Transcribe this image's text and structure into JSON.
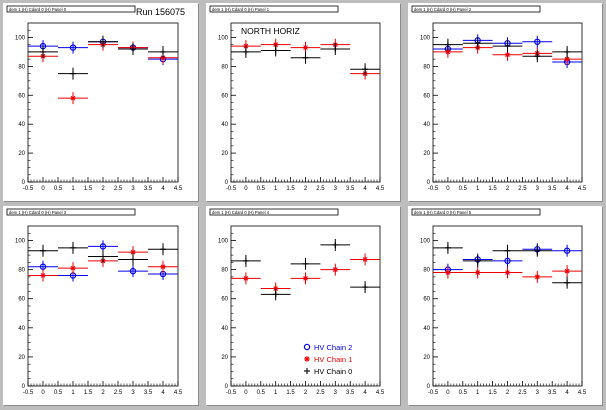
{
  "run_label": "Run 156075",
  "colors": {
    "chain2": "#0000ee",
    "chain1": "#ee0000",
    "chain0": "#000000"
  },
  "legend": [
    {
      "name": "HV Chain 2",
      "marker": "circle",
      "color": "#0000ee"
    },
    {
      "name": "HV Chain 1",
      "marker": "star",
      "color": "#ee0000"
    },
    {
      "name": "HV Chain 0",
      "marker": "plus",
      "color": "#000000"
    }
  ],
  "chart_data": [
    {
      "type": "scatter",
      "title": "dem 1 (H) Cdard 0 (H) Panel 0",
      "annotation": "",
      "xlim": [
        -0.5,
        4.5
      ],
      "ylim": [
        0,
        110
      ],
      "xticks": [
        "-0.5",
        "0",
        "0.5",
        "1",
        "1.5",
        "2",
        "2.5",
        "3",
        "3.5",
        "4",
        "4.5"
      ],
      "yticks": [
        "0",
        "20",
        "40",
        "60",
        "80",
        "100"
      ],
      "series": [
        {
          "name": "HV Chain 2",
          "x": [
            0,
            1,
            2,
            3,
            4
          ],
          "y": [
            94,
            93,
            97,
            93,
            85
          ]
        },
        {
          "name": "HV Chain 1",
          "x": [
            0,
            1,
            2,
            3,
            4
          ],
          "y": [
            87,
            58,
            95,
            93,
            86
          ]
        },
        {
          "name": "HV Chain 0",
          "x": [
            0,
            1,
            2,
            3,
            4
          ],
          "y": [
            90,
            75,
            97,
            92,
            90
          ]
        }
      ]
    },
    {
      "type": "scatter",
      "title": "dem 1 (H) Cdard 0 (H) Panel 1",
      "annotation": "NORTH HORIZ",
      "xlim": [
        -0.5,
        4.5
      ],
      "ylim": [
        0,
        110
      ],
      "xticks": [
        "-0.5",
        "0",
        "0.5",
        "1",
        "1.5",
        "2",
        "2.5",
        "3",
        "3.5",
        "4",
        "4.5"
      ],
      "yticks": [
        "0",
        "20",
        "40",
        "60",
        "80",
        "100"
      ],
      "series": [
        {
          "name": "HV Chain 2",
          "x": [],
          "y": []
        },
        {
          "name": "HV Chain 1",
          "x": [
            0,
            1,
            2,
            3,
            4
          ],
          "y": [
            94,
            95,
            93,
            95,
            75
          ]
        },
        {
          "name": "HV Chain 0",
          "x": [
            0,
            1,
            2,
            3,
            4
          ],
          "y": [
            90,
            91,
            86,
            92,
            78
          ]
        }
      ]
    },
    {
      "type": "scatter",
      "title": "dem 1 (H) Cdard 0 (H) Panel 2",
      "annotation": "",
      "xlim": [
        -0.5,
        4.5
      ],
      "ylim": [
        0,
        110
      ],
      "xticks": [
        "-0.5",
        "0",
        "0.5",
        "1",
        "1.5",
        "2",
        "2.5",
        "3",
        "3.5",
        "4",
        "4.5"
      ],
      "yticks": [
        "0",
        "20",
        "40",
        "60",
        "80",
        "100"
      ],
      "series": [
        {
          "name": "HV Chain 2",
          "x": [
            0,
            1,
            2,
            3,
            4
          ],
          "y": [
            92,
            98,
            96,
            97,
            83
          ]
        },
        {
          "name": "HV Chain 1",
          "x": [
            0,
            1,
            2,
            3,
            4
          ],
          "y": [
            90,
            93,
            88,
            89,
            85
          ]
        },
        {
          "name": "HV Chain 0",
          "x": [
            0,
            1,
            2,
            3,
            4
          ],
          "y": [
            95,
            96,
            94,
            87,
            90
          ]
        }
      ]
    },
    {
      "type": "scatter",
      "title": "dem 1 (H) Cdard 0 (H) Panel 3",
      "annotation": "",
      "xlim": [
        -0.5,
        4.5
      ],
      "ylim": [
        0,
        110
      ],
      "xticks": [
        "-0.5",
        "0",
        "0.5",
        "1",
        "1.5",
        "2",
        "2.5",
        "3",
        "3.5",
        "4",
        "4.5"
      ],
      "yticks": [
        "0",
        "20",
        "40",
        "60",
        "80",
        "100"
      ],
      "series": [
        {
          "name": "HV Chain 2",
          "x": [
            0,
            1,
            2,
            3,
            4
          ],
          "y": [
            82,
            76,
            96,
            79,
            77
          ]
        },
        {
          "name": "HV Chain 1",
          "x": [
            0,
            1,
            2,
            3,
            4
          ],
          "y": [
            76,
            81,
            86,
            92,
            82
          ]
        },
        {
          "name": "HV Chain 0",
          "x": [
            0,
            1,
            2,
            3,
            4
          ],
          "y": [
            93,
            95,
            89,
            87,
            94
          ]
        }
      ]
    },
    {
      "type": "scatter",
      "title": "dem 1 (H) Cdard 0 (H) Panel 4",
      "annotation": "",
      "xlim": [
        -0.5,
        4.5
      ],
      "ylim": [
        0,
        110
      ],
      "xticks": [
        "-0.5",
        "0",
        "0.5",
        "1",
        "1.5",
        "2",
        "2.5",
        "3",
        "3.5",
        "4",
        "4.5"
      ],
      "yticks": [
        "0",
        "20",
        "40",
        "60",
        "80",
        "100"
      ],
      "series": [
        {
          "name": "HV Chain 2",
          "x": [],
          "y": []
        },
        {
          "name": "HV Chain 1",
          "x": [
            0,
            1,
            2,
            3,
            4
          ],
          "y": [
            74,
            67,
            74,
            80,
            87
          ]
        },
        {
          "name": "HV Chain 0",
          "x": [
            0,
            1,
            2,
            3,
            4
          ],
          "y": [
            86,
            63,
            84,
            97,
            68
          ]
        }
      ]
    },
    {
      "type": "scatter",
      "title": "dem 1 (H) Cdard 0 (H) Panel 5",
      "annotation": "",
      "xlim": [
        -0.5,
        4.5
      ],
      "ylim": [
        0,
        110
      ],
      "xticks": [
        "-0.5",
        "0",
        "0.5",
        "1",
        "1.5",
        "2",
        "2.5",
        "3",
        "3.5",
        "4",
        "4.5"
      ],
      "yticks": [
        "0",
        "20",
        "40",
        "60",
        "80",
        "100"
      ],
      "series": [
        {
          "name": "HV Chain 2",
          "x": [
            0,
            1,
            2,
            3,
            4
          ],
          "y": [
            80,
            87,
            86,
            94,
            93
          ]
        },
        {
          "name": "HV Chain 1",
          "x": [
            0,
            1,
            2,
            3,
            4
          ],
          "y": [
            78,
            78,
            78,
            75,
            79
          ]
        },
        {
          "name": "HV Chain 0",
          "x": [
            0,
            1,
            2,
            3,
            4
          ],
          "y": [
            95,
            86,
            93,
            93,
            71
          ]
        }
      ]
    }
  ]
}
